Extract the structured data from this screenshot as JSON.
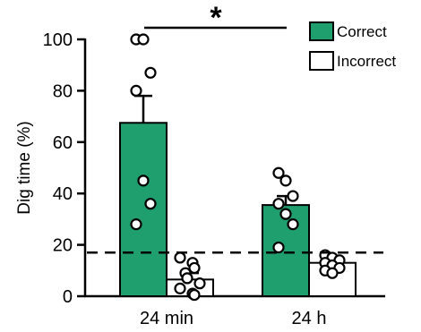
{
  "chart_data": {
    "type": "bar",
    "ylabel": "Dig time (%)",
    "xlabel": "",
    "ylim": [
      0,
      100
    ],
    "yticks": [
      "0",
      "20",
      "40",
      "60",
      "80",
      "100"
    ],
    "ytick_values": [
      0,
      20,
      40,
      60,
      80,
      100
    ],
    "categories": [
      "24 min",
      "24 h"
    ],
    "series": [
      {
        "name": "Correct",
        "color": "#1f9e6e",
        "values": [
          67.5,
          35.5
        ],
        "sem": [
          10.5,
          3.5
        ],
        "points": [
          [
            100,
            100,
            87,
            80,
            45,
            36,
            28
          ],
          [
            48,
            45,
            39,
            36,
            32,
            28,
            19
          ]
        ]
      },
      {
        "name": "Incorrect",
        "color": "#ffffff",
        "values": [
          6.5,
          13
        ],
        "sem": [
          2.5,
          0.7
        ],
        "points": [
          [
            15,
            13,
            11,
            9,
            7,
            5,
            3,
            1,
            0.5
          ],
          [
            16,
            15,
            14,
            13,
            12,
            11,
            10,
            9
          ]
        ]
      }
    ],
    "reference_line": {
      "y": 17,
      "style": "dashed"
    },
    "significance": {
      "label": "*",
      "between": [
        "24 min",
        "24 h"
      ]
    }
  }
}
